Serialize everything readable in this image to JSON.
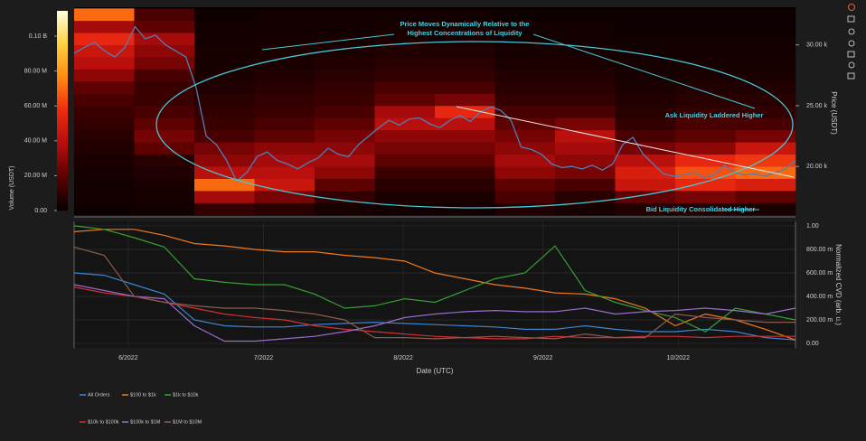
{
  "chart_data": [
    {
      "type": "heatmap",
      "annotations": [
        "Price Moves Dynamically Relative to the",
        "Highest Concentrations of Liquidity",
        "Ask Liquidity Laddered Higher",
        "Bid Liquidity Consolidated Higher"
      ],
      "y_label": "Price (USDT)",
      "colorbar_label": "Volume (USDT)",
      "xlim": [
        "2022-05-20",
        "2022-10-27"
      ],
      "ylim": [
        16000,
        33100
      ],
      "yticks": [
        {
          "value": 20000,
          "label": "20.00 k"
        },
        {
          "value": 25000,
          "label": "25.00 k"
        },
        {
          "value": 30000,
          "label": "30.00 k"
        }
      ],
      "clim": [
        0,
        114500000
      ],
      "cticks": [
        {
          "value": 0,
          "label": "0.00"
        },
        {
          "value": 20000000,
          "label": "20.00 M"
        },
        {
          "value": 40000000,
          "label": "40.00 M"
        },
        {
          "value": 60000000,
          "label": "60.00 M"
        },
        {
          "value": 80000000,
          "label": "80.00 M"
        },
        {
          "value": 100000000,
          "label": "0.10 B"
        }
      ],
      "colorscale": [
        "#050000",
        "#5a0000",
        "#b50d0d",
        "#ee2a10",
        "#ff8a10",
        "#ffd040",
        "#ffffe0"
      ],
      "heatmap": {
        "y_bins": [
          16000,
          17000,
          18000,
          19000,
          20000,
          21000,
          22000,
          23000,
          24000,
          25000,
          26000,
          27000,
          28000,
          29000,
          30000,
          31000,
          32000,
          33000
        ],
        "z": [
          [
            2000000.0,
            3000000.0,
            10000000.0,
            8000000.0,
            4000000.0,
            3000000.0,
            3000000.0,
            6000000.0,
            4000000.0,
            6000000.0,
            6000000.0,
            5000000.0
          ],
          [
            3000000.0,
            4000000.0,
            35000000.0,
            25000000.0,
            10000000.0,
            5000000.0,
            5000000.0,
            15000000.0,
            8000000.0,
            20000000.0,
            25000000.0,
            20000000.0
          ],
          [
            3000000.0,
            5000000.0,
            70000000.0,
            45000000.0,
            20000000.0,
            8000000.0,
            8000000.0,
            20000000.0,
            15000000.0,
            45000000.0,
            55000000.0,
            50000000.0
          ],
          [
            4000000.0,
            6000000.0,
            40000000.0,
            40000000.0,
            30000000.0,
            12000000.0,
            12000000.0,
            30000000.0,
            25000000.0,
            50000000.0,
            65000000.0,
            70000000.0
          ],
          [
            5000000.0,
            8000000.0,
            30000000.0,
            35000000.0,
            35000000.0,
            20000000.0,
            20000000.0,
            35000000.0,
            30000000.0,
            40000000.0,
            55000000.0,
            60000000.0
          ],
          [
            6000000.0,
            20000000.0,
            25000000.0,
            30000000.0,
            30000000.0,
            25000000.0,
            25000000.0,
            30000000.0,
            35000000.0,
            25000000.0,
            30000000.0,
            45000000.0
          ],
          [
            8000000.0,
            25000000.0,
            15000000.0,
            20000000.0,
            25000000.0,
            30000000.0,
            30000000.0,
            25000000.0,
            40000000.0,
            15000000.0,
            20000000.0,
            25000000.0
          ],
          [
            10000000.0,
            20000000.0,
            12000000.0,
            15000000.0,
            20000000.0,
            40000000.0,
            40000000.0,
            20000000.0,
            25000000.0,
            10000000.0,
            15000000.0,
            15000000.0
          ],
          [
            12000000.0,
            15000000.0,
            10000000.0,
            12000000.0,
            15000000.0,
            35000000.0,
            55000000.0,
            15000000.0,
            15000000.0,
            8000000.0,
            10000000.0,
            10000000.0
          ],
          [
            15000000.0,
            12000000.0,
            8000000.0,
            10000000.0,
            12000000.0,
            20000000.0,
            25000000.0,
            10000000.0,
            10000000.0,
            6000000.0,
            8000000.0,
            8000000.0
          ],
          [
            20000000.0,
            12000000.0,
            6000000.0,
            8000000.0,
            10000000.0,
            15000000.0,
            15000000.0,
            8000000.0,
            8000000.0,
            5000000.0,
            6000000.0,
            6000000.0
          ],
          [
            30000000.0,
            15000000.0,
            5000000.0,
            6000000.0,
            8000000.0,
            10000000.0,
            10000000.0,
            6000000.0,
            6000000.0,
            4000000.0,
            5000000.0,
            5000000.0
          ],
          [
            40000000.0,
            25000000.0,
            4000000.0,
            5000000.0,
            6000000.0,
            8000000.0,
            8000000.0,
            5000000.0,
            5000000.0,
            4000000.0,
            4000000.0,
            4000000.0
          ],
          [
            45000000.0,
            30000000.0,
            4000000.0,
            5000000.0,
            5000000.0,
            6000000.0,
            6000000.0,
            4000000.0,
            4000000.0,
            3000000.0,
            3000000.0,
            3000000.0
          ],
          [
            55000000.0,
            35000000.0,
            3000000.0,
            4000000.0,
            4000000.0,
            5000000.0,
            5000000.0,
            3000000.0,
            3000000.0,
            3000000.0,
            3000000.0,
            3000000.0
          ],
          [
            35000000.0,
            20000000.0,
            3000000.0,
            3000000.0,
            3000000.0,
            4000000.0,
            4000000.0,
            3000000.0,
            3000000.0,
            2000000.0,
            2000000.0,
            2000000.0
          ],
          [
            70000000.0,
            15000000.0,
            2000000.0,
            3000000.0,
            3000000.0,
            3000000.0,
            3000000.0,
            2000000.0,
            2000000.0,
            2000000.0,
            2000000.0,
            2000000.0
          ]
        ]
      },
      "line": {
        "color": "#4f7fb8",
        "values": [
          29300,
          29800,
          30200,
          29500,
          29000,
          29800,
          31500,
          30500,
          30800,
          30000,
          29500,
          29000,
          26500,
          22500,
          21800,
          20500,
          18800,
          19500,
          20800,
          21200,
          20500,
          20200,
          19800,
          20300,
          20700,
          21500,
          21000,
          20800,
          21800,
          22500,
          23200,
          23800,
          23400,
          23900,
          24000,
          23500,
          23200,
          23800,
          24200,
          23700,
          24500,
          24900,
          24600,
          23800,
          21600,
          21400,
          21000,
          20200,
          19900,
          20000,
          19800,
          20100,
          19700,
          20200,
          21800,
          22400,
          21000,
          20200,
          19400,
          19200,
          19300,
          19500,
          19100,
          19300,
          20100,
          19500,
          19300,
          19400,
          19200,
          19500,
          19800,
          20500
        ]
      }
    },
    {
      "type": "line",
      "x_label": "Date (UTC)",
      "y_label": "Normalized CVD (arb. u.)",
      "xlim": [
        "2022-05-20",
        "2022-10-27"
      ],
      "xticks": [
        {
          "value": "2022-06-01",
          "label": "6/2022"
        },
        {
          "value": "2022-07-01",
          "label": "7/2022"
        },
        {
          "value": "2022-08-01",
          "label": "8/2022"
        },
        {
          "value": "2022-09-01",
          "label": "9/2022"
        },
        {
          "value": "2022-10-01",
          "label": "10/2022"
        }
      ],
      "ylim": [
        -0.038,
        1.038
      ],
      "yticks": [
        {
          "value": 0,
          "label": "0.00"
        },
        {
          "value": 0.2,
          "label": "200.00 m"
        },
        {
          "value": 0.4,
          "label": "400.00 m"
        },
        {
          "value": 0.6,
          "label": "600.00 m"
        },
        {
          "value": 0.8,
          "label": "800.00 m"
        },
        {
          "value": 1,
          "label": "1.00"
        }
      ],
      "grid": true,
      "series": [
        {
          "name": "All Orders",
          "color": "#3c86d0",
          "values": [
            0.6,
            0.58,
            0.5,
            0.42,
            0.2,
            0.15,
            0.14,
            0.14,
            0.16,
            0.17,
            0.18,
            0.17,
            0.16,
            0.15,
            0.14,
            0.12,
            0.12,
            0.15,
            0.12,
            0.1,
            0.1,
            0.12,
            0.1,
            0.05,
            0.03
          ]
        },
        {
          "name": "$100 to $1k",
          "color": "#f07a1a",
          "values": [
            0.95,
            0.97,
            0.97,
            0.92,
            0.85,
            0.83,
            0.8,
            0.78,
            0.78,
            0.75,
            0.73,
            0.7,
            0.6,
            0.55,
            0.5,
            0.47,
            0.43,
            0.42,
            0.38,
            0.3,
            0.15,
            0.25,
            0.2,
            0.12,
            0.03
          ]
        },
        {
          "name": "$1k to $10k",
          "color": "#36a032",
          "values": [
            1.0,
            0.97,
            0.9,
            0.82,
            0.55,
            0.52,
            0.5,
            0.5,
            0.42,
            0.3,
            0.32,
            0.38,
            0.35,
            0.45,
            0.55,
            0.6,
            0.83,
            0.45,
            0.35,
            0.28,
            0.22,
            0.1,
            0.3,
            0.25,
            0.2
          ]
        },
        {
          "name": "$10k to $100k",
          "color": "#d03030",
          "values": [
            0.48,
            0.43,
            0.4,
            0.35,
            0.3,
            0.25,
            0.22,
            0.2,
            0.15,
            0.12,
            0.1,
            0.08,
            0.06,
            0.05,
            0.04,
            0.04,
            0.06,
            0.05,
            0.05,
            0.06,
            0.06,
            0.05,
            0.06,
            0.06,
            0.06
          ]
        },
        {
          "name": "$100k to $1M",
          "color": "#9a6ccc",
          "values": [
            0.5,
            0.45,
            0.4,
            0.38,
            0.15,
            0.02,
            0.02,
            0.04,
            0.06,
            0.1,
            0.15,
            0.22,
            0.25,
            0.27,
            0.28,
            0.27,
            0.27,
            0.3,
            0.25,
            0.27,
            0.28,
            0.3,
            0.28,
            0.25,
            0.3
          ]
        },
        {
          "name": "$1M to $10M",
          "color": "#8c5a4e",
          "values": [
            0.82,
            0.75,
            0.4,
            0.35,
            0.32,
            0.3,
            0.3,
            0.28,
            0.25,
            0.2,
            0.05,
            0.05,
            0.04,
            0.05,
            0.06,
            0.05,
            0.04,
            0.08,
            0.05,
            0.05,
            0.25,
            0.22,
            0.2,
            0.18,
            0.18
          ]
        }
      ]
    }
  ]
}
